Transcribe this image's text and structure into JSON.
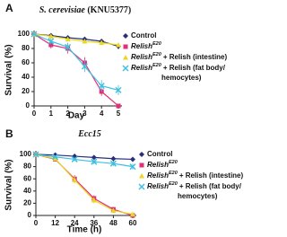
{
  "chart_data": [
    {
      "type": "line",
      "panel": "A",
      "title": "S. cerevisiae",
      "title_suffix": "(KNU5377)",
      "x_label": "Day",
      "y_label": "Survival (%)",
      "x": [
        0,
        1,
        2,
        3,
        4,
        5
      ],
      "xlim": [
        0,
        5
      ],
      "xticks": [
        0,
        1,
        2,
        3,
        4,
        5
      ],
      "ylim": [
        0,
        100
      ],
      "yticks": [
        0,
        20,
        40,
        60,
        80,
        100
      ],
      "series": [
        {
          "name": "Control",
          "color": "#2b2f7a",
          "marker": "diamond",
          "values": [
            100,
            98,
            95,
            93,
            90,
            83
          ],
          "errors": [
            0,
            2,
            3,
            3,
            3,
            4
          ]
        },
        {
          "name": "Relish",
          "name_sup": "E20",
          "color": "#e0307a",
          "marker": "square",
          "values": [
            100,
            85,
            80,
            60,
            20,
            0
          ],
          "errors": [
            0,
            5,
            7,
            8,
            6,
            0
          ]
        },
        {
          "name": "Relish",
          "name_sup": "E20",
          "name_suffix": "+ Relish (intestine)",
          "color": "#e8d820",
          "marker": "triangle",
          "values": [
            100,
            97,
            93,
            90,
            88,
            85
          ],
          "errors": [
            0,
            2,
            3,
            3,
            3,
            3
          ]
        },
        {
          "name": "Relish",
          "name_sup": "E20",
          "name_suffix": "+ Relish (fat body/",
          "name_line2": "hemocytes)",
          "color": "#40c0e0",
          "marker": "x",
          "values": [
            100,
            90,
            82,
            55,
            28,
            22
          ],
          "errors": [
            0,
            4,
            6,
            8,
            8,
            7
          ]
        }
      ]
    },
    {
      "type": "line",
      "panel": "B",
      "title": "Ecc15",
      "x_label": "Time (h)",
      "y_label": "Survival (%)",
      "x": [
        0,
        12,
        24,
        36,
        48,
        60
      ],
      "xlim": [
        0,
        60
      ],
      "xticks": [
        0,
        12,
        24,
        36,
        48,
        60
      ],
      "ylim": [
        0,
        100
      ],
      "yticks": [
        0,
        20,
        40,
        60,
        80,
        100
      ],
      "series": [
        {
          "name": "Control",
          "color": "#2b2f7a",
          "marker": "diamond",
          "values": [
            100,
            99,
            97,
            95,
            93,
            92
          ],
          "errors": [
            0,
            1,
            2,
            2,
            3,
            3
          ]
        },
        {
          "name": "Relish",
          "name_sup": "E20",
          "color": "#e0307a",
          "marker": "square",
          "values": [
            100,
            92,
            60,
            28,
            10,
            0
          ],
          "errors": [
            0,
            3,
            6,
            5,
            4,
            0
          ]
        },
        {
          "name": "Relish",
          "name_sup": "E20",
          "name_suffix": "+ Relish (intestine)",
          "color": "#e8d820",
          "marker": "triangle",
          "values": [
            100,
            93,
            58,
            25,
            8,
            2
          ],
          "errors": [
            0,
            3,
            6,
            5,
            3,
            2
          ]
        },
        {
          "name": "Relish",
          "name_sup": "E20",
          "name_suffix": "+ Relish (fat body/",
          "name_line2": "hemocytes)",
          "color": "#40c0e0",
          "marker": "x",
          "values": [
            100,
            96,
            92,
            88,
            85,
            80
          ],
          "errors": [
            0,
            2,
            3,
            4,
            4,
            5
          ]
        }
      ]
    }
  ]
}
